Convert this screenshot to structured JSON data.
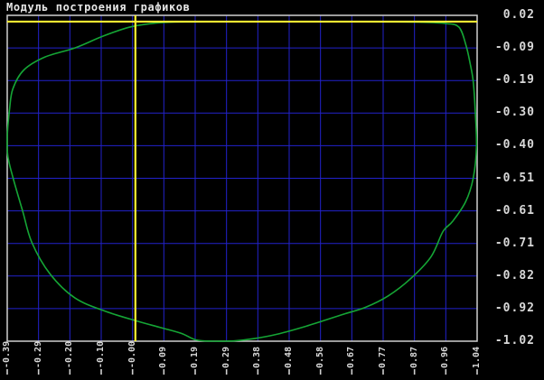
{
  "chart_data": {
    "type": "line",
    "title": "Модуль построения графиков",
    "x_range": [
      -0.39,
      1.04
    ],
    "y_range": [
      -1.02,
      0.02
    ],
    "grid": true,
    "legend": "none",
    "x_tick_labels": [
      "-0.39",
      "-0.29",
      "-0.20",
      "-0.10",
      "-0.00",
      "0.09",
      "0.19",
      "0.29",
      "0.38",
      "0.48",
      "0.58",
      "0.67",
      "0.77",
      "0.87",
      "0.96",
      "1.04"
    ],
    "y_tick_labels": [
      "0.02",
      "-0.09",
      "-0.19",
      "-0.30",
      "-0.40",
      "-0.51",
      "-0.61",
      "-0.71",
      "-0.82",
      "-0.92",
      "-1.02"
    ],
    "axes_at": {
      "x_axis_y": 0.0,
      "y_axis_x": 0.0
    },
    "series": [
      {
        "name": "curve",
        "closed": true,
        "points": [
          [
            0.05,
            -0.006
          ],
          [
            0.1,
            -0.002
          ],
          [
            0.18,
            -0.001
          ],
          [
            0.3,
            0.0
          ],
          [
            0.45,
            0.0
          ],
          [
            0.6,
            0.0
          ],
          [
            0.75,
            -0.001
          ],
          [
            0.87,
            -0.002
          ],
          [
            0.945,
            -0.006
          ],
          [
            0.985,
            -0.018
          ],
          [
            1.006,
            -0.075
          ],
          [
            1.019,
            -0.135
          ],
          [
            1.028,
            -0.19
          ],
          [
            1.034,
            -0.28
          ],
          [
            1.038,
            -0.4
          ],
          [
            1.028,
            -0.5
          ],
          [
            1.005,
            -0.575
          ],
          [
            0.965,
            -0.638
          ],
          [
            0.936,
            -0.67
          ],
          [
            0.9,
            -0.75
          ],
          [
            0.838,
            -0.82
          ],
          [
            0.77,
            -0.875
          ],
          [
            0.7,
            -0.912
          ],
          [
            0.63,
            -0.935
          ],
          [
            0.52,
            -0.972
          ],
          [
            0.43,
            -0.998
          ],
          [
            0.36,
            -1.012
          ],
          [
            0.3,
            -1.019
          ],
          [
            0.24,
            -1.02
          ],
          [
            0.185,
            -1.016
          ],
          [
            0.14,
            -0.995
          ],
          [
            0.075,
            -0.976
          ],
          [
            0.009,
            -0.957
          ],
          [
            -0.09,
            -0.925
          ],
          [
            -0.184,
            -0.882
          ],
          [
            -0.26,
            -0.805
          ],
          [
            -0.315,
            -0.705
          ],
          [
            -0.343,
            -0.605
          ],
          [
            -0.372,
            -0.5
          ],
          [
            -0.388,
            -0.43
          ],
          [
            -0.39,
            -0.37
          ],
          [
            -0.383,
            -0.28
          ],
          [
            -0.373,
            -0.215
          ],
          [
            -0.34,
            -0.155
          ],
          [
            -0.275,
            -0.113
          ],
          [
            -0.184,
            -0.084
          ],
          [
            -0.1,
            -0.047
          ],
          [
            -0.019,
            -0.018
          ]
        ]
      }
    ],
    "colors": {
      "background": "#000000",
      "title": "#e6e6e6",
      "frame": "#cfcfcf",
      "grid": "#2222cc",
      "axis": "#ffee33",
      "curve": "#15a535",
      "label": "#d9d9d9"
    }
  }
}
